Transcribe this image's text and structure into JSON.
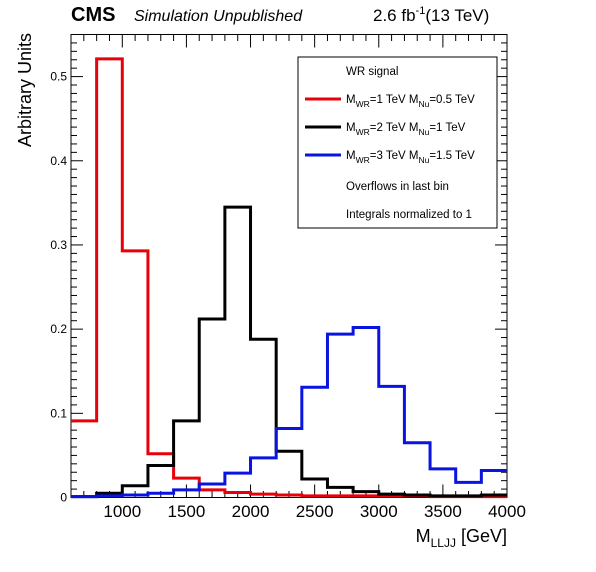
{
  "header": {
    "experiment": "CMS",
    "status": "Simulation Unpublished",
    "lumi_value": "2.6 fb",
    "lumi_exp": "-1",
    "energy": "(13 TeV)"
  },
  "legend": {
    "heading": "WR signal",
    "notes": [
      "Overflows in last bin",
      "Integrals normalized to 1"
    ]
  },
  "colors": {
    "red": "#e8000b",
    "black": "#000000",
    "blue": "#0a14e0"
  },
  "chart_data": {
    "type": "line",
    "style": "step-histogram",
    "xlabel_main": "M",
    "xlabel_sub": "LLJJ",
    "xlabel_unit": " [GeV]",
    "ylabel": "Arbitrary Units",
    "xlim": [
      600,
      4000
    ],
    "ylim": [
      0,
      0.55
    ],
    "grid": false,
    "legend_position": "top-right",
    "x_ticks": [
      1000,
      1500,
      2000,
      2500,
      3000,
      3500,
      4000
    ],
    "y_ticks": [
      0,
      0.1,
      0.2,
      0.3,
      0.4,
      0.5
    ],
    "y_tick_labels": [
      "0",
      "0.1",
      "0.2",
      "0.3",
      "0.4",
      "0.5"
    ],
    "bin_edges": [
      600,
      800,
      1000,
      1200,
      1400,
      1600,
      1800,
      2000,
      2200,
      2400,
      2600,
      2800,
      3000,
      3200,
      3400,
      3600,
      3800,
      4000
    ],
    "series": [
      {
        "label": [
          {
            "t": "M"
          },
          {
            "t": "WR",
            "sub": true
          },
          {
            "t": "=1 TeV M"
          },
          {
            "t": "Nu",
            "sub": true
          },
          {
            "t": "=0.5 TeV"
          }
        ],
        "color": "#e8000b",
        "values": [
          0.091,
          0.521,
          0.293,
          0.052,
          0.023,
          0.009,
          0.006,
          0.004,
          0.003,
          0.002,
          0.002,
          0.002,
          0.002,
          0.002,
          0.001,
          0.001,
          0.001
        ]
      },
      {
        "label": [
          {
            "t": "M"
          },
          {
            "t": "WR",
            "sub": true
          },
          {
            "t": "=2 TeV M"
          },
          {
            "t": "Nu",
            "sub": true
          },
          {
            "t": "=1 TeV"
          }
        ],
        "color": "#000000",
        "values": [
          0.001,
          0.005,
          0.014,
          0.038,
          0.091,
          0.212,
          0.345,
          0.188,
          0.055,
          0.022,
          0.012,
          0.007,
          0.004,
          0.003,
          0.002,
          0.002,
          0.003
        ]
      },
      {
        "label": [
          {
            "t": "M"
          },
          {
            "t": "WR",
            "sub": true
          },
          {
            "t": "=3 TeV M"
          },
          {
            "t": "Nu",
            "sub": true
          },
          {
            "t": "=1.5 TeV"
          }
        ],
        "color": "#0a14e0",
        "values": [
          0.001,
          0.002,
          0.003,
          0.005,
          0.009,
          0.016,
          0.029,
          0.047,
          0.082,
          0.131,
          0.194,
          0.202,
          0.132,
          0.065,
          0.034,
          0.018,
          0.032
        ]
      }
    ]
  }
}
